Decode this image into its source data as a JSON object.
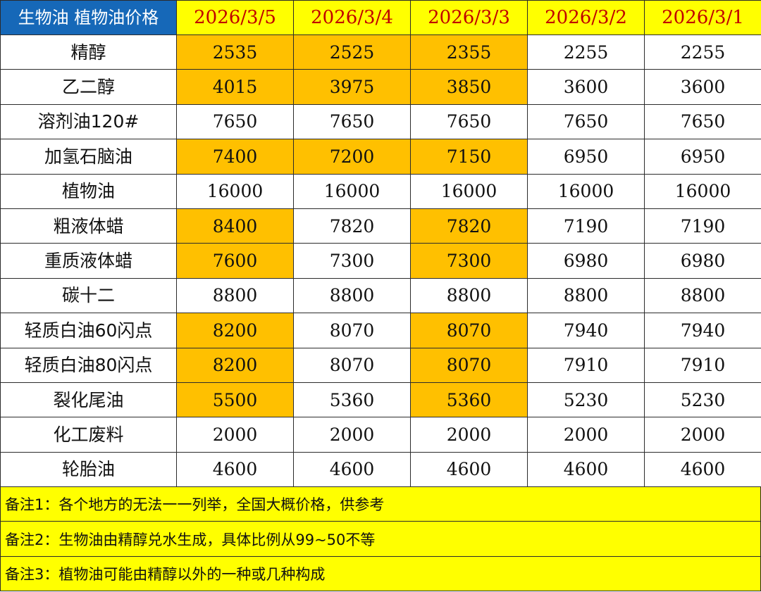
{
  "table": {
    "title": "生物油  植物油价格",
    "dates": [
      "2026/3/5",
      "2026/3/4",
      "2026/3/3",
      "2026/3/2",
      "2026/3/1"
    ],
    "rows": [
      {
        "name": "精醇",
        "values": [
          "2535",
          "2525",
          "2355",
          "2255",
          "2255"
        ],
        "highlight": [
          true,
          true,
          true,
          false,
          false
        ]
      },
      {
        "name": "乙二醇",
        "values": [
          "4015",
          "3975",
          "3850",
          "3600",
          "3600"
        ],
        "highlight": [
          true,
          true,
          true,
          false,
          false
        ]
      },
      {
        "name": "溶剂油120#",
        "values": [
          "7650",
          "7650",
          "7650",
          "7650",
          "7650"
        ],
        "highlight": [
          false,
          false,
          false,
          false,
          false
        ]
      },
      {
        "name": "加氢石脑油",
        "values": [
          "7400",
          "7200",
          "7150",
          "6950",
          "6950"
        ],
        "highlight": [
          true,
          true,
          true,
          false,
          false
        ]
      },
      {
        "name": "植物油",
        "values": [
          "16000",
          "16000",
          "16000",
          "16000",
          "16000"
        ],
        "highlight": [
          false,
          false,
          false,
          false,
          false
        ]
      },
      {
        "name": "粗液体蜡",
        "values": [
          "8400",
          "7820",
          "7820",
          "7190",
          "7190"
        ],
        "highlight": [
          true,
          false,
          true,
          false,
          false
        ]
      },
      {
        "name": "重质液体蜡",
        "values": [
          "7600",
          "7300",
          "7300",
          "6980",
          "6980"
        ],
        "highlight": [
          true,
          false,
          true,
          false,
          false
        ]
      },
      {
        "name": "碳十二",
        "values": [
          "8800",
          "8800",
          "8800",
          "8800",
          "8800"
        ],
        "highlight": [
          false,
          false,
          false,
          false,
          false
        ]
      },
      {
        "name": "轻质白油60闪点",
        "values": [
          "8200",
          "8070",
          "8070",
          "7940",
          "7940"
        ],
        "highlight": [
          true,
          false,
          true,
          false,
          false
        ]
      },
      {
        "name": "轻质白油80闪点",
        "values": [
          "8200",
          "8070",
          "8070",
          "7910",
          "7910"
        ],
        "highlight": [
          true,
          false,
          true,
          false,
          false
        ]
      },
      {
        "name": "裂化尾油",
        "values": [
          "5500",
          "5360",
          "5360",
          "5230",
          "5230"
        ],
        "highlight": [
          true,
          false,
          true,
          false,
          false
        ]
      },
      {
        "name": "化工废料",
        "values": [
          "2000",
          "2000",
          "2000",
          "2000",
          "2000"
        ],
        "highlight": [
          false,
          false,
          false,
          false,
          false
        ]
      },
      {
        "name": "轮胎油",
        "values": [
          "4600",
          "4600",
          "4600",
          "4600",
          "4600"
        ],
        "highlight": [
          false,
          false,
          false,
          false,
          false
        ]
      }
    ]
  },
  "notes": [
    "备注1：各个地方的无法一一列举，全国大概价格，供参考",
    "备注2：生物油由精醇兑水生成，具体比例从99~50不等",
    "备注3：植物油可能由精醇以外的一种或几种构成"
  ],
  "colors": {
    "title_bg": "#1668b8",
    "header_bg": "#ffff00",
    "header_text": "#c00000",
    "highlight": "#ffc000",
    "notes_bg": "#ffff00"
  }
}
